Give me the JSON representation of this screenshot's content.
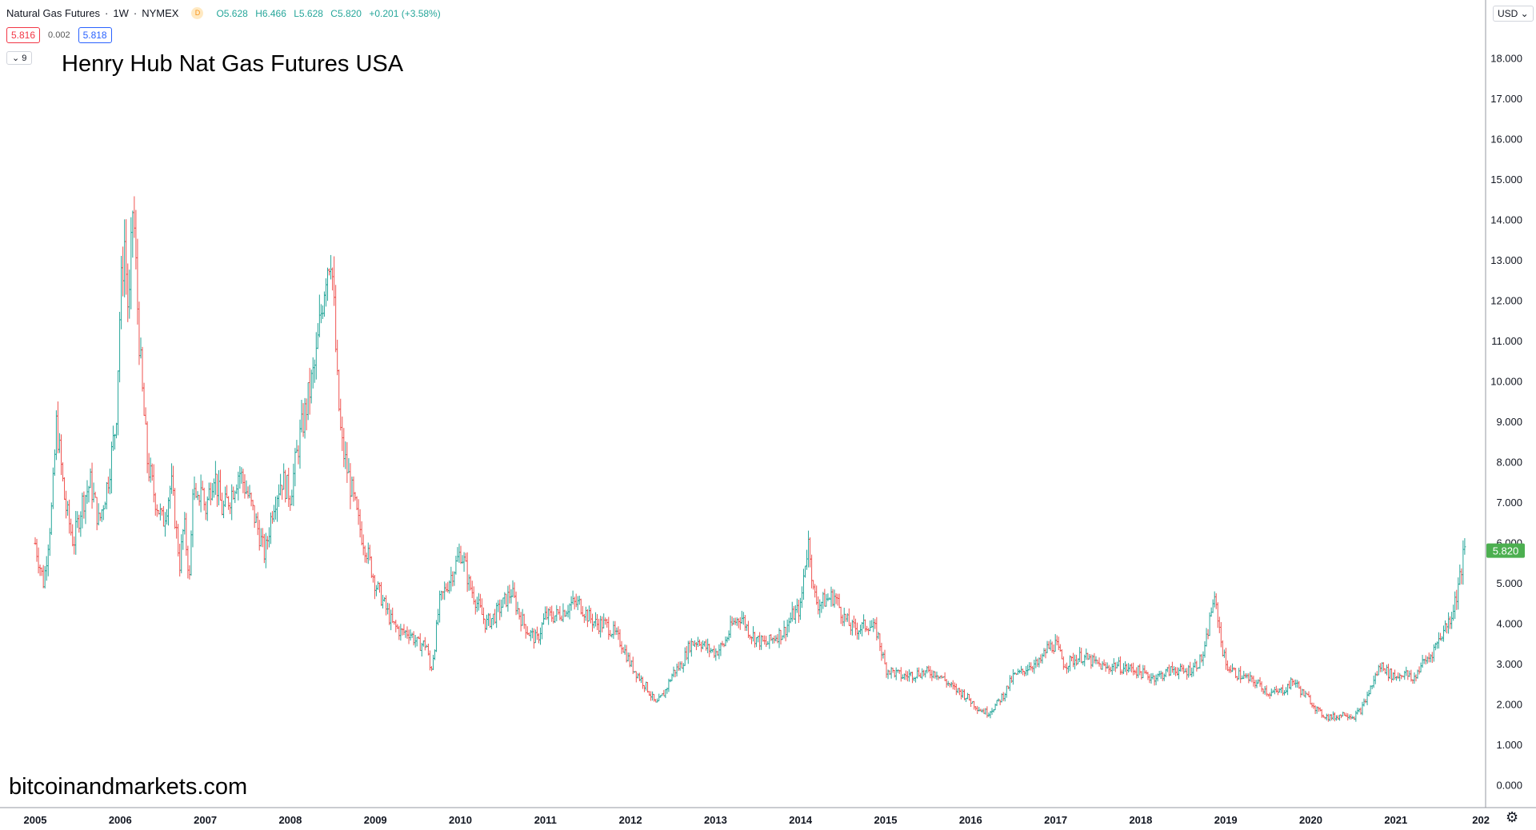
{
  "header": {
    "symbol": "Natural Gas Futures",
    "interval": "1W",
    "exchange": "NYMEX",
    "badge": "D",
    "open": "O5.628",
    "high": "H6.466",
    "low": "L5.628",
    "close": "C5.820",
    "change": "+0.201 (+3.58%)",
    "bid": "5.816",
    "spread": "0.002",
    "ask": "5.818",
    "indicator_count": "9"
  },
  "overlay": {
    "title": "Henry Hub Nat Gas Futures USA",
    "watermark": "bitcoinandmarkets.com",
    "currency": "USD"
  },
  "colors": {
    "up": "#26a69a",
    "down": "#ef5350",
    "last_price": "#4caf50",
    "axis": "#d1d4dc"
  },
  "chart_data": {
    "type": "ohlc",
    "interval": "weekly",
    "y_ticks": [
      0,
      1,
      2,
      3,
      4,
      5,
      6,
      7,
      8,
      9,
      10,
      11,
      12,
      13,
      14,
      15,
      16,
      17,
      18
    ],
    "y_tick_labels": [
      "0.000",
      "1.000",
      "2.000",
      "3.000",
      "4.000",
      "5.000",
      "6.000",
      "7.000",
      "8.000",
      "9.000",
      "10.000",
      "11.000",
      "12.000",
      "13.000",
      "14.000",
      "15.000",
      "16.000",
      "17.000",
      "18.000"
    ],
    "x_labels": [
      "2005",
      "2006",
      "2007",
      "2008",
      "2009",
      "2010",
      "2011",
      "2012",
      "2013",
      "2014",
      "2015",
      "2016",
      "2017",
      "2018",
      "2019",
      "2020",
      "2021",
      "202"
    ],
    "x_range": [
      2004.96,
      2022.4
    ],
    "last_price": 5.82,
    "last_price_label": "5.820",
    "close_path": [
      [
        2005.0,
        6.0
      ],
      [
        2005.1,
        5.0
      ],
      [
        2005.2,
        7.0
      ],
      [
        2005.25,
        9.0
      ],
      [
        2005.35,
        7.0
      ],
      [
        2005.45,
        6.0
      ],
      [
        2005.55,
        7.0
      ],
      [
        2005.65,
        7.5
      ],
      [
        2005.75,
        6.5
      ],
      [
        2005.85,
        7.5
      ],
      [
        2005.95,
        9.0
      ],
      [
        2006.0,
        12.0
      ],
      [
        2006.05,
        13.5
      ],
      [
        2006.1,
        11.5
      ],
      [
        2006.15,
        14.5
      ],
      [
        2006.2,
        12.0
      ],
      [
        2006.25,
        10.0
      ],
      [
        2006.32,
        8.0
      ],
      [
        2006.4,
        7.2
      ],
      [
        2006.5,
        6.5
      ],
      [
        2006.6,
        7.5
      ],
      [
        2006.65,
        6.5
      ],
      [
        2006.7,
        5.5
      ],
      [
        2006.75,
        6.5
      ],
      [
        2006.82,
        5.0
      ],
      [
        2006.85,
        7.5
      ],
      [
        2006.9,
        6.8
      ],
      [
        2006.95,
        7.5
      ],
      [
        2007.0,
        6.8
      ],
      [
        2007.1,
        7.8
      ],
      [
        2007.2,
        6.8
      ],
      [
        2007.3,
        7.2
      ],
      [
        2007.4,
        7.8
      ],
      [
        2007.5,
        7.2
      ],
      [
        2007.6,
        6.5
      ],
      [
        2007.7,
        5.7
      ],
      [
        2007.8,
        7.0
      ],
      [
        2007.9,
        7.6
      ],
      [
        2008.0,
        7.2
      ],
      [
        2008.1,
        8.5
      ],
      [
        2008.2,
        9.5
      ],
      [
        2008.3,
        10.5
      ],
      [
        2008.35,
        11.5
      ],
      [
        2008.42,
        12.8
      ],
      [
        2008.48,
        13.3
      ],
      [
        2008.52,
        11.5
      ],
      [
        2008.55,
        10.0
      ],
      [
        2008.6,
        8.5
      ],
      [
        2008.7,
        7.5
      ],
      [
        2008.8,
        6.5
      ],
      [
        2008.9,
        5.8
      ],
      [
        2009.0,
        5.0
      ],
      [
        2009.1,
        4.5
      ],
      [
        2009.2,
        4.0
      ],
      [
        2009.3,
        3.8
      ],
      [
        2009.4,
        3.8
      ],
      [
        2009.5,
        3.5
      ],
      [
        2009.6,
        3.5
      ],
      [
        2009.65,
        2.8
      ],
      [
        2009.7,
        3.5
      ],
      [
        2009.75,
        4.5
      ],
      [
        2009.85,
        5.0
      ],
      [
        2009.95,
        5.5
      ],
      [
        2010.0,
        5.8
      ],
      [
        2010.05,
        5.5
      ],
      [
        2010.1,
        5.0
      ],
      [
        2010.2,
        4.5
      ],
      [
        2010.3,
        4.0
      ],
      [
        2010.4,
        4.2
      ],
      [
        2010.5,
        4.5
      ],
      [
        2010.6,
        4.8
      ],
      [
        2010.7,
        4.2
      ],
      [
        2010.8,
        3.8
      ],
      [
        2010.9,
        3.6
      ],
      [
        2011.0,
        4.2
      ],
      [
        2011.1,
        4.2
      ],
      [
        2011.2,
        4.3
      ],
      [
        2011.3,
        4.5
      ],
      [
        2011.4,
        4.5
      ],
      [
        2011.5,
        4.2
      ],
      [
        2011.6,
        4.0
      ],
      [
        2011.7,
        4.0
      ],
      [
        2011.8,
        3.8
      ],
      [
        2011.9,
        3.5
      ],
      [
        2012.0,
        3.0
      ],
      [
        2012.1,
        2.7
      ],
      [
        2012.2,
        2.4
      ],
      [
        2012.3,
        2.0
      ],
      [
        2012.4,
        2.3
      ],
      [
        2012.5,
        2.8
      ],
      [
        2012.6,
        3.0
      ],
      [
        2012.7,
        3.5
      ],
      [
        2012.8,
        3.6
      ],
      [
        2012.9,
        3.4
      ],
      [
        2013.0,
        3.3
      ],
      [
        2013.1,
        3.5
      ],
      [
        2013.2,
        4.0
      ],
      [
        2013.3,
        4.2
      ],
      [
        2013.4,
        3.8
      ],
      [
        2013.5,
        3.6
      ],
      [
        2013.6,
        3.5
      ],
      [
        2013.7,
        3.7
      ],
      [
        2013.8,
        3.8
      ],
      [
        2013.9,
        4.2
      ],
      [
        2014.0,
        4.4
      ],
      [
        2014.05,
        5.5
      ],
      [
        2014.1,
        6.1
      ],
      [
        2014.15,
        4.8
      ],
      [
        2014.2,
        4.5
      ],
      [
        2014.3,
        4.6
      ],
      [
        2014.4,
        4.7
      ],
      [
        2014.5,
        4.2
      ],
      [
        2014.6,
        3.9
      ],
      [
        2014.7,
        3.9
      ],
      [
        2014.8,
        4.0
      ],
      [
        2014.9,
        3.8
      ],
      [
        2015.0,
        2.9
      ],
      [
        2015.2,
        2.7
      ],
      [
        2015.4,
        2.8
      ],
      [
        2015.6,
        2.8
      ],
      [
        2015.8,
        2.4
      ],
      [
        2015.9,
        2.3
      ],
      [
        2016.0,
        2.1
      ],
      [
        2016.1,
        1.9
      ],
      [
        2016.2,
        1.8
      ],
      [
        2016.3,
        2.0
      ],
      [
        2016.4,
        2.3
      ],
      [
        2016.5,
        2.7
      ],
      [
        2016.6,
        2.8
      ],
      [
        2016.7,
        3.0
      ],
      [
        2016.8,
        3.0
      ],
      [
        2016.9,
        3.4
      ],
      [
        2017.0,
        3.5
      ],
      [
        2017.1,
        3.0
      ],
      [
        2017.2,
        3.1
      ],
      [
        2017.3,
        3.2
      ],
      [
        2017.4,
        3.1
      ],
      [
        2017.5,
        3.0
      ],
      [
        2017.6,
        2.9
      ],
      [
        2017.7,
        3.0
      ],
      [
        2017.8,
        2.9
      ],
      [
        2017.9,
        2.9
      ],
      [
        2018.0,
        2.8
      ],
      [
        2018.1,
        2.7
      ],
      [
        2018.2,
        2.7
      ],
      [
        2018.3,
        2.8
      ],
      [
        2018.4,
        2.9
      ],
      [
        2018.5,
        2.8
      ],
      [
        2018.6,
        2.9
      ],
      [
        2018.7,
        3.1
      ],
      [
        2018.75,
        3.3
      ],
      [
        2018.85,
        4.6
      ],
      [
        2018.9,
        4.3
      ],
      [
        2018.95,
        3.5
      ],
      [
        2019.0,
        3.0
      ],
      [
        2019.1,
        2.8
      ],
      [
        2019.2,
        2.7
      ],
      [
        2019.3,
        2.6
      ],
      [
        2019.4,
        2.5
      ],
      [
        2019.5,
        2.3
      ],
      [
        2019.6,
        2.3
      ],
      [
        2019.7,
        2.4
      ],
      [
        2019.8,
        2.6
      ],
      [
        2019.9,
        2.3
      ],
      [
        2020.0,
        2.1
      ],
      [
        2020.1,
        1.8
      ],
      [
        2020.2,
        1.7
      ],
      [
        2020.3,
        1.7
      ],
      [
        2020.4,
        1.8
      ],
      [
        2020.5,
        1.7
      ],
      [
        2020.6,
        1.9
      ],
      [
        2020.7,
        2.4
      ],
      [
        2020.8,
        2.9
      ],
      [
        2020.85,
        3.0
      ],
      [
        2020.9,
        2.8
      ],
      [
        2021.0,
        2.7
      ],
      [
        2021.1,
        2.8
      ],
      [
        2021.2,
        2.6
      ],
      [
        2021.3,
        3.0
      ],
      [
        2021.4,
        3.2
      ],
      [
        2021.5,
        3.6
      ],
      [
        2021.6,
        4.0
      ],
      [
        2021.65,
        4.2
      ],
      [
        2021.7,
        4.6
      ],
      [
        2021.75,
        5.1
      ],
      [
        2021.78,
        5.5
      ],
      [
        2021.81,
        5.82
      ]
    ]
  }
}
